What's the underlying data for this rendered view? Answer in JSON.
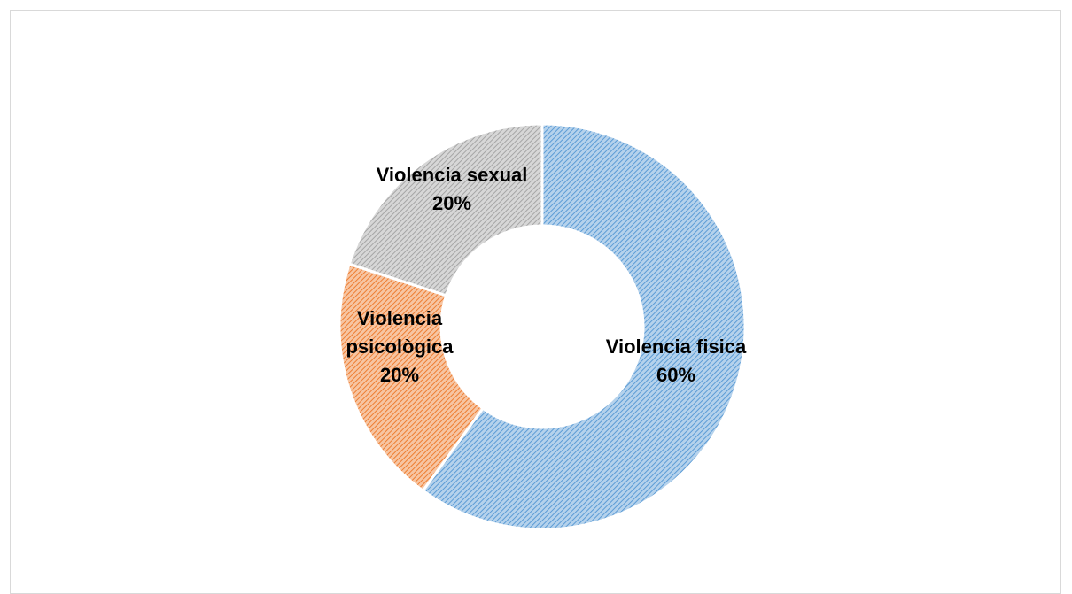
{
  "chart_data": {
    "type": "pie",
    "variant": "doughnut",
    "title": "",
    "legend": "none",
    "fill_pattern": "diagonal-hatch",
    "slices": [
      {
        "label": "Violencia fisica",
        "value": 60,
        "value_label": "60%",
        "color": "#5b9bd5"
      },
      {
        "label": "Violencia psicològica",
        "value": 20,
        "value_label": "20%",
        "color": "#ed7d31"
      },
      {
        "label": "Violencia sexual",
        "value": 20,
        "value_label": "20%",
        "color": "#a5a5a5"
      }
    ]
  }
}
